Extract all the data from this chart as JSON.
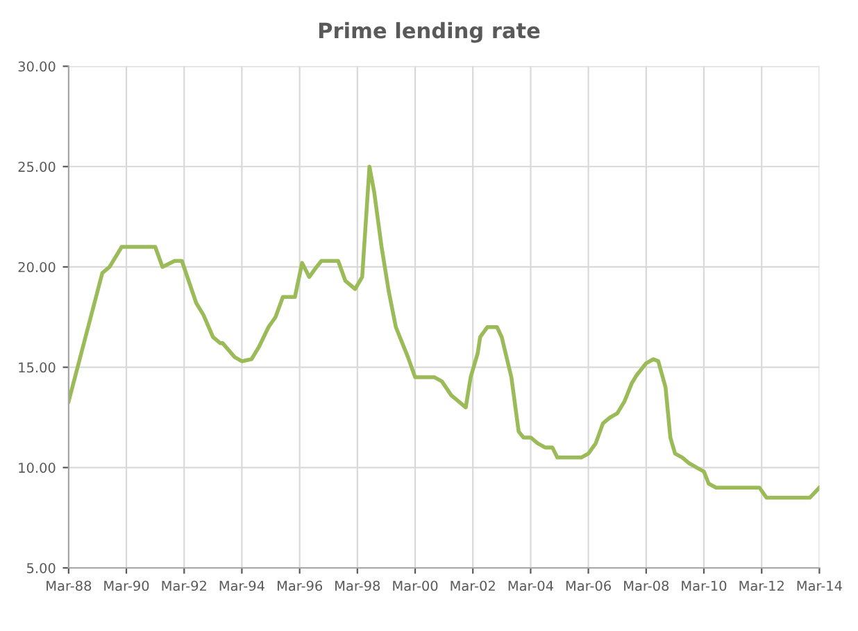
{
  "chart_data": {
    "type": "line",
    "title": "Prime lending rate",
    "x": [
      "1988-03",
      "1989-05",
      "1989-08",
      "1990-01",
      "1991-03",
      "1991-06",
      "1991-11",
      "1992-02",
      "1992-08",
      "1992-11",
      "1993-03",
      "1993-06",
      "1993-07",
      "1993-12",
      "1994-03",
      "1994-07",
      "1994-10",
      "1995-02",
      "1995-05",
      "1995-08",
      "1996-01",
      "1996-04",
      "1996-07",
      "1996-10",
      "1996-12",
      "1997-07",
      "1997-10",
      "1998-02",
      "1998-05",
      "1998-08",
      "1998-10",
      "1999-01",
      "1999-04",
      "1999-07",
      "1999-12",
      "2000-03",
      "2000-11",
      "2001-02",
      "2001-06",
      "2001-09",
      "2001-12",
      "2002-02",
      "2002-05",
      "2002-06",
      "2002-09",
      "2003-01",
      "2003-03",
      "2003-07",
      "2003-10",
      "2003-12",
      "2004-03",
      "2004-06",
      "2004-09",
      "2004-12",
      "2005-02",
      "2005-12",
      "2006-03",
      "2006-06",
      "2006-09",
      "2006-12",
      "2007-03",
      "2007-06",
      "2007-09",
      "2007-11",
      "2008-03",
      "2008-06",
      "2008-08",
      "2008-11",
      "2009-01",
      "2009-03",
      "2009-06",
      "2009-09",
      "2009-12",
      "2010-03",
      "2010-05",
      "2010-08",
      "2012-02",
      "2012-05",
      "2013-11",
      "2014-03"
    ],
    "series": [
      {
        "color": "#9bbb59",
        "values": [
          13.3,
          19.7,
          20.0,
          21.0,
          21.0,
          20.0,
          20.3,
          20.3,
          18.2,
          17.6,
          16.5,
          16.2,
          16.2,
          15.5,
          15.3,
          15.4,
          16.0,
          17.0,
          17.5,
          18.5,
          18.5,
          20.2,
          19.5,
          20.0,
          20.3,
          20.3,
          19.3,
          18.9,
          19.5,
          25.0,
          23.7,
          21.0,
          18.8,
          17.0,
          15.5,
          14.5,
          14.5,
          14.3,
          13.6,
          13.3,
          13.0,
          14.5,
          15.7,
          16.5,
          17.0,
          17.0,
          16.5,
          14.5,
          11.8,
          11.5,
          11.5,
          11.2,
          11.0,
          11.0,
          10.5,
          10.5,
          10.7,
          11.2,
          12.2,
          12.5,
          12.7,
          13.3,
          14.2,
          14.6,
          15.2,
          15.4,
          15.3,
          14.0,
          11.5,
          10.7,
          10.5,
          10.2,
          10.0,
          9.8,
          9.2,
          9.0,
          9.0,
          8.5,
          8.5,
          9.0
        ]
      }
    ],
    "xlim": [
      "1988-03",
      "2014-03"
    ],
    "xticks": [
      {
        "value": "1988-03",
        "label": "Mar-88"
      },
      {
        "value": "1990-03",
        "label": "Mar-90"
      },
      {
        "value": "1992-03",
        "label": "Mar-92"
      },
      {
        "value": "1994-03",
        "label": "Mar-94"
      },
      {
        "value": "1996-03",
        "label": "Mar-96"
      },
      {
        "value": "1998-03",
        "label": "Mar-98"
      },
      {
        "value": "2000-03",
        "label": "Mar-00"
      },
      {
        "value": "2002-03",
        "label": "Mar-02"
      },
      {
        "value": "2004-03",
        "label": "Mar-04"
      },
      {
        "value": "2006-03",
        "label": "Mar-06"
      },
      {
        "value": "2008-03",
        "label": "Mar-08"
      },
      {
        "value": "2010-03",
        "label": "Mar-10"
      },
      {
        "value": "2012-03",
        "label": "Mar-12"
      },
      {
        "value": "2014-03",
        "label": "Mar-14"
      }
    ],
    "ylim": [
      5,
      30
    ],
    "yticks": [
      {
        "value": 5,
        "label": "5.00"
      },
      {
        "value": 10,
        "label": "10.00"
      },
      {
        "value": 15,
        "label": "15.00"
      },
      {
        "value": 20,
        "label": "20.00"
      },
      {
        "value": 25,
        "label": "25.00"
      },
      {
        "value": 30,
        "label": "30.00"
      }
    ],
    "grid": true,
    "marker": "none",
    "line_style": "solid"
  }
}
